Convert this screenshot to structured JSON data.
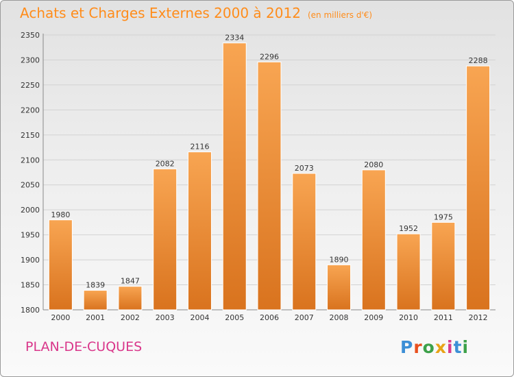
{
  "header": {
    "title": "Achats et Charges Externes 2000 à 2012",
    "unit": "(en milliers d'€)"
  },
  "footer": {
    "commune": "PLAN-DE-CUQUES",
    "logo_text": "Proxiti",
    "logo_letter_colors": [
      "#3d8fd6",
      "#e8501e",
      "#3da14a",
      "#e8a317",
      "#d83a8c",
      "#3d8fd6",
      "#3da14a"
    ]
  },
  "colors": {
    "title": "#ff8c1a",
    "commune": "#d9368a",
    "bar_top": "#f8a552",
    "bar_bottom": "#d9731e"
  },
  "chart_data": {
    "type": "bar",
    "title": "Achats et Charges Externes 2000 à 2012",
    "subtitle": "(en milliers d'€)",
    "xlabel": "",
    "ylabel": "",
    "categories": [
      "2000",
      "2001",
      "2002",
      "2003",
      "2004",
      "2005",
      "2006",
      "2007",
      "2008",
      "2009",
      "2010",
      "2011",
      "2012"
    ],
    "values": [
      1980,
      1839,
      1847,
      2082,
      2116,
      2334,
      2296,
      2073,
      1890,
      2080,
      1952,
      1975,
      2288
    ],
    "ylim": [
      1800,
      2350
    ],
    "yticks": [
      1800,
      1850,
      1900,
      1950,
      2000,
      2050,
      2100,
      2150,
      2200,
      2250,
      2300,
      2350
    ],
    "grid": true,
    "legend": "none"
  }
}
